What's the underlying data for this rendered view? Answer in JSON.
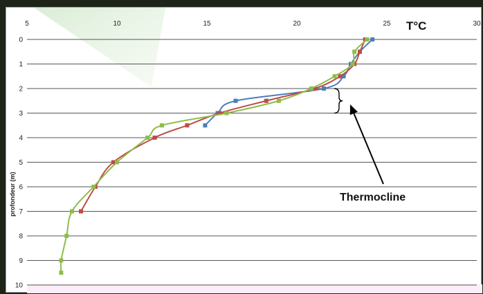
{
  "chart_data": {
    "type": "line",
    "x_axis_position": "top",
    "y_axis_inverted": true,
    "xlabel": "T°C",
    "ylabel": "profondeur (m)",
    "xlim": [
      5,
      30
    ],
    "ylim": [
      0,
      10
    ],
    "x_ticks": [
      "5",
      "10",
      "15",
      "20",
      "25",
      "30"
    ],
    "y_ticks": [
      "0",
      "1",
      "2",
      "3",
      "4",
      "5",
      "6",
      "7",
      "8",
      "9",
      "10"
    ],
    "grid": "horizontal",
    "annotation": "Thermocline",
    "series": [
      {
        "color": "#4a7ebb",
        "points": [
          {
            "t": 24.2,
            "depth": 0
          },
          {
            "t": 23.5,
            "depth": 0.5
          },
          {
            "t": 23.0,
            "depth": 1
          },
          {
            "t": 22.6,
            "depth": 1.5
          },
          {
            "t": 21.5,
            "depth": 2
          },
          {
            "t": 16.6,
            "depth": 2.5
          },
          {
            "t": 15.6,
            "depth": 3
          },
          {
            "t": 14.9,
            "depth": 3.5
          }
        ]
      },
      {
        "color": "#be4b48",
        "points": [
          {
            "t": 23.8,
            "depth": 0
          },
          {
            "t": 23.5,
            "depth": 0.5
          },
          {
            "t": 23.2,
            "depth": 1
          },
          {
            "t": 22.4,
            "depth": 1.5
          },
          {
            "t": 21.0,
            "depth": 2
          },
          {
            "t": 18.3,
            "depth": 2.5
          },
          {
            "t": 15.7,
            "depth": 3
          },
          {
            "t": 13.9,
            "depth": 3.5
          },
          {
            "t": 12.1,
            "depth": 4
          },
          {
            "t": 9.8,
            "depth": 5
          },
          {
            "t": 8.8,
            "depth": 6
          },
          {
            "t": 8.0,
            "depth": 7
          }
        ]
      },
      {
        "color": "#8fbc4a",
        "points": [
          {
            "t": 23.9,
            "depth": 0
          },
          {
            "t": 23.2,
            "depth": 0.5
          },
          {
            "t": 23.1,
            "depth": 1
          },
          {
            "t": 22.1,
            "depth": 1.5
          },
          {
            "t": 20.8,
            "depth": 2
          },
          {
            "t": 19.0,
            "depth": 2.5
          },
          {
            "t": 16.1,
            "depth": 3
          },
          {
            "t": 12.5,
            "depth": 3.5
          },
          {
            "t": 11.7,
            "depth": 4
          },
          {
            "t": 10.0,
            "depth": 5
          },
          {
            "t": 8.7,
            "depth": 6
          },
          {
            "t": 7.5,
            "depth": 7
          },
          {
            "t": 7.2,
            "depth": 8
          },
          {
            "t": 6.9,
            "depth": 9
          },
          {
            "t": 6.9,
            "depth": 9.5
          }
        ]
      }
    ]
  }
}
